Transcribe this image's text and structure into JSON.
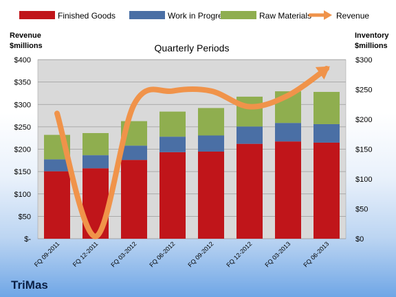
{
  "chart_data": {
    "type": "bar",
    "stacked": true,
    "categories": [
      "FQ 09-2011",
      "FQ 12-2011",
      "FQ 03-2012",
      "FQ 06-2012",
      "FQ 09-2012",
      "FQ 12-2012",
      "FQ 03-2013",
      "FQ 06-2013"
    ],
    "series": [
      {
        "name": "Finished Goods",
        "axis": "right",
        "color": "#c0151a",
        "values": [
          113,
          118,
          132,
          145,
          146,
          159,
          163,
          161
        ]
      },
      {
        "name": "Work in Progress",
        "axis": "right",
        "color": "#4a6fa5",
        "values": [
          20,
          22,
          24,
          26,
          27,
          29,
          31,
          31
        ]
      },
      {
        "name": "Raw Materials",
        "axis": "right",
        "color": "#8fae4f",
        "values": [
          41,
          37,
          41,
          42,
          46,
          50,
          53,
          54
        ]
      }
    ],
    "line_series": [
      {
        "name": "Revenue",
        "axis": "left",
        "color": "#f0934a",
        "values": [
          280,
          5,
          300,
          330,
          330,
          295,
          320,
          380
        ]
      }
    ],
    "title": "Quarterly Periods",
    "y_left_label_line1": "Revenue",
    "y_left_label_line2": "$millions",
    "y_right_label_line1": "Inventory",
    "y_right_label_line2": "$millions",
    "y_left_ticks": [
      "$-",
      "$50",
      "$100",
      "$150",
      "$200",
      "$250",
      "$300",
      "$350",
      "$400"
    ],
    "y_right_ticks": [
      "$0",
      "$50",
      "$100",
      "$150",
      "$200",
      "$250",
      "$300"
    ],
    "ylim_left": [
      0,
      400
    ],
    "ylim_right": [
      0,
      300
    ],
    "grid": true,
    "legend_position": "top",
    "plot_background": "#d9d9d9"
  },
  "brand": "TriMas"
}
